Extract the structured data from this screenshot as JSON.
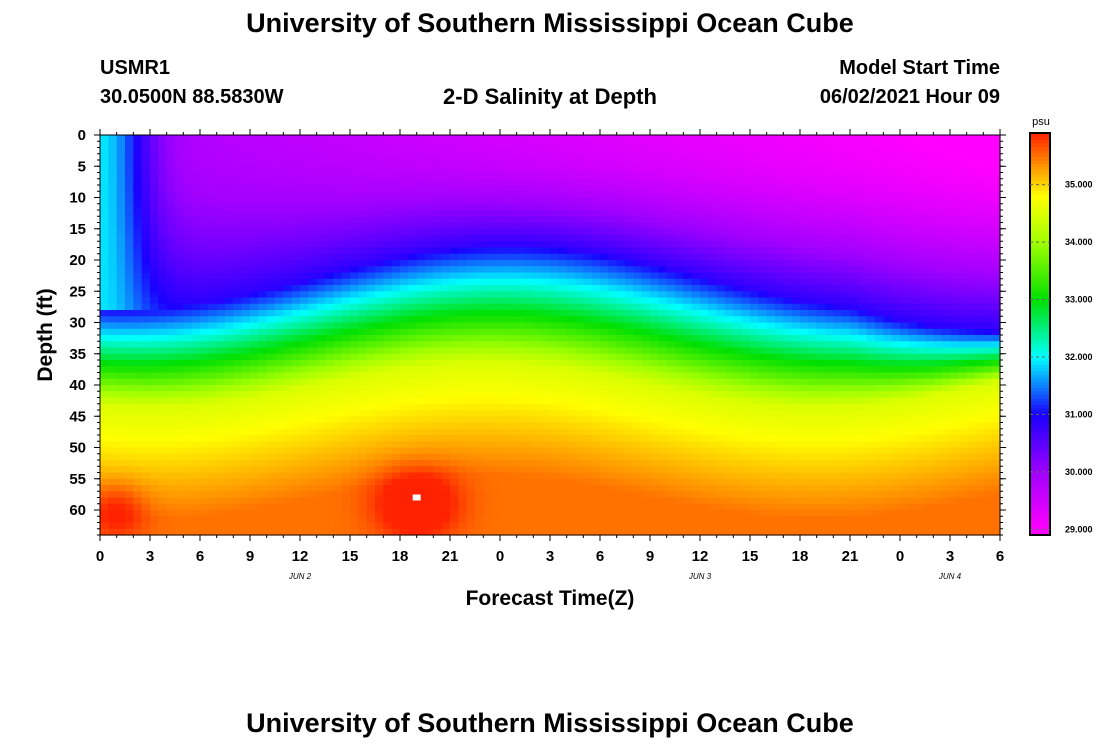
{
  "page": {
    "title_top": "University of Southern Mississippi Ocean Cube",
    "title_bottom": "University of Southern Mississippi Ocean Cube",
    "station": "USMR1",
    "location": "30.0500N  88.5830W",
    "plot_title": "2-D Salinity at Depth",
    "start_label": "Model Start Time",
    "start_value": "06/02/2021 Hour 09"
  },
  "chart_data": {
    "type": "heatmap",
    "title": "2-D Salinity at Depth",
    "xlabel": "Forecast Time(Z)",
    "ylabel": "Depth (ft)",
    "x_ticks": [
      "0",
      "3",
      "6",
      "9",
      "12",
      "15",
      "18",
      "21",
      "0",
      "3",
      "6",
      "9",
      "12",
      "15",
      "18",
      "21",
      "0",
      "3",
      "6"
    ],
    "date_labels": [
      {
        "label": "JUN 2",
        "tick_index": 4
      },
      {
        "label": "JUN 3",
        "tick_index": 12
      },
      {
        "label": "JUN 4",
        "tick_index": 17
      }
    ],
    "y_ticks": [
      0,
      5,
      10,
      15,
      20,
      25,
      30,
      35,
      40,
      45,
      50,
      55,
      60
    ],
    "ylim": [
      0,
      64
    ],
    "xlim_hours": [
      0,
      54
    ],
    "colorbar": {
      "unit": "psu",
      "min": 28.9,
      "max": 35.9,
      "tick_labels": [
        "29.000",
        "30.000",
        "31.000",
        "32.000",
        "33.000",
        "34.000",
        "35.000"
      ],
      "colors": {
        "magenta": "#ff00ff",
        "purple": "#a000ff",
        "blue": "#1a00ff",
        "cyan": "#00ffff",
        "green": "#00e000",
        "yellow": "#ffff00",
        "orange": "#ff9a00",
        "red": "#ff2200"
      }
    },
    "hotspot": {
      "hour": 19,
      "depth_ft": 58,
      "marker": "white"
    }
  }
}
